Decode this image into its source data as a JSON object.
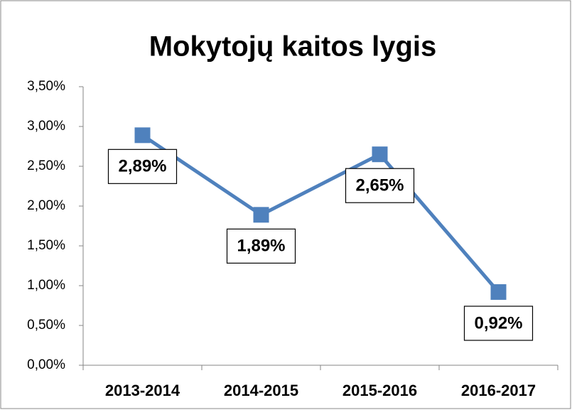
{
  "chart_data": {
    "type": "line",
    "title": "Mokytojų kaitos lygis",
    "categories": [
      "2013-2014",
      "2014-2015",
      "2015-2016",
      "2016-2017"
    ],
    "series": [
      {
        "name": "Mokytojų kaitos lygis",
        "color": "#4f81bd",
        "values": [
          2.89,
          1.89,
          2.65,
          0.92
        ],
        "value_labels": [
          "2,89%",
          "1,89%",
          "2,65%",
          "0,92%"
        ]
      }
    ],
    "ylim": [
      0,
      3.5
    ],
    "yticks": [
      {
        "value": 0,
        "label": "0,00%"
      },
      {
        "value": 0.5,
        "label": "0,50%"
      },
      {
        "value": 1,
        "label": "1,00%"
      },
      {
        "value": 1.5,
        "label": "1,50%"
      },
      {
        "value": 2,
        "label": "2,00%"
      },
      {
        "value": 2.5,
        "label": "2,50%"
      },
      {
        "value": 3,
        "label": "3,00%"
      },
      {
        "value": 3.5,
        "label": "3,50%"
      }
    ],
    "grid": false,
    "legend": false
  }
}
